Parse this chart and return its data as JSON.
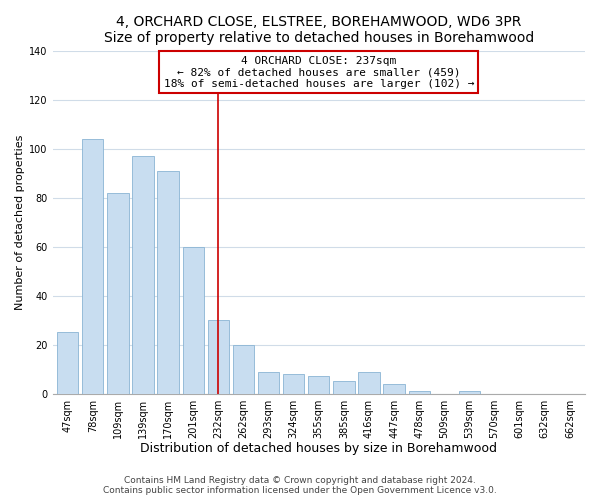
{
  "title": "4, ORCHARD CLOSE, ELSTREE, BOREHAMWOOD, WD6 3PR",
  "subtitle": "Size of property relative to detached houses in Borehamwood",
  "xlabel": "Distribution of detached houses by size in Borehamwood",
  "ylabel": "Number of detached properties",
  "bar_labels": [
    "47sqm",
    "78sqm",
    "109sqm",
    "139sqm",
    "170sqm",
    "201sqm",
    "232sqm",
    "262sqm",
    "293sqm",
    "324sqm",
    "355sqm",
    "385sqm",
    "416sqm",
    "447sqm",
    "478sqm",
    "509sqm",
    "539sqm",
    "570sqm",
    "601sqm",
    "632sqm",
    "662sqm"
  ],
  "bar_values": [
    25,
    104,
    82,
    97,
    91,
    60,
    30,
    20,
    9,
    8,
    7,
    5,
    9,
    4,
    1,
    0,
    1,
    0,
    0,
    0,
    0
  ],
  "bar_color": "#c8ddf0",
  "bar_edge_color": "#8ab4d4",
  "vline_x_index": 6,
  "vline_color": "#cc0000",
  "annotation_line1": "4 ORCHARD CLOSE: 237sqm",
  "annotation_line2": "← 82% of detached houses are smaller (459)",
  "annotation_line3": "18% of semi-detached houses are larger (102) →",
  "annotation_box_color": "#ffffff",
  "annotation_box_edge": "#cc0000",
  "ylim": [
    0,
    140
  ],
  "yticks": [
    0,
    20,
    40,
    60,
    80,
    100,
    120,
    140
  ],
  "footer_line1": "Contains HM Land Registry data © Crown copyright and database right 2024.",
  "footer_line2": "Contains public sector information licensed under the Open Government Licence v3.0.",
  "background_color": "#ffffff",
  "plot_background": "#ffffff",
  "grid_color": "#d0dce8",
  "title_fontsize": 10,
  "subtitle_fontsize": 9.5,
  "xlabel_fontsize": 9,
  "ylabel_fontsize": 8,
  "tick_fontsize": 7,
  "annotation_fontsize": 8,
  "footer_fontsize": 6.5
}
